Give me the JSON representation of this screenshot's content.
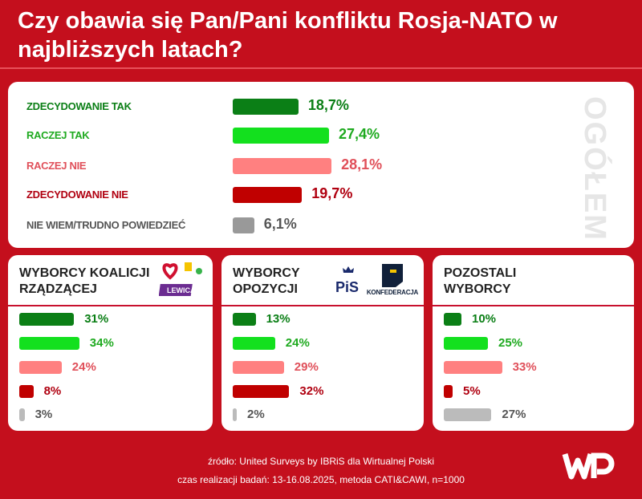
{
  "title": "Czy obawia się Pan/Pani konfliktu Rosja-NATO w najbliższych latach?",
  "colors": {
    "background": "#c40f1d",
    "zdecydowanie_tak": "#0b7f16",
    "raczej_tak": "#13e01e",
    "raczej_nie": "#ff8080",
    "zdecydowanie_nie": "#c00000",
    "nie_wiem": "#999999"
  },
  "chart_data": [
    {
      "type": "bar",
      "title": "OGÓŁEM",
      "categories": [
        "ZDECYDOWANIE TAK",
        "RACZEJ TAK",
        "RACZEJ NIE",
        "ZDECYDOWANIE NIE",
        "NIE WIEM/TRUDNO POWIEDZIEĆ"
      ],
      "values": [
        18.7,
        27.4,
        28.1,
        19.7,
        6.1
      ],
      "labels": [
        "18,7%",
        "27,4%",
        "28,1%",
        "19,7%",
        "6,1%"
      ]
    },
    {
      "type": "bar",
      "title": "WYBORCY KOALICJI RZĄDZĄCEJ",
      "logo_text": "LEWICA",
      "values": [
        31,
        34,
        24,
        8,
        3
      ],
      "labels": [
        "31%",
        "34%",
        "24%",
        "8%",
        "3%"
      ]
    },
    {
      "type": "bar",
      "title": "WYBORCY OPOZYCJI",
      "logo_text": [
        "PiS",
        "KONFEDERACJA"
      ],
      "values": [
        13,
        24,
        29,
        32,
        2
      ],
      "labels": [
        "13%",
        "24%",
        "29%",
        "32%",
        "2%"
      ]
    },
    {
      "type": "bar",
      "title": "POZOSTALI WYBORCY",
      "values": [
        10,
        25,
        33,
        5,
        27
      ],
      "labels": [
        "10%",
        "25%",
        "33%",
        "5%",
        "27%"
      ]
    }
  ],
  "footer": {
    "source": "źródło: United Surveys by IBRiS dla Wirtualnej Polski",
    "details": "czas realizacji badań: 13-16.08.2025, metoda CATI&CAWI, n=1000",
    "logo": "WP"
  }
}
